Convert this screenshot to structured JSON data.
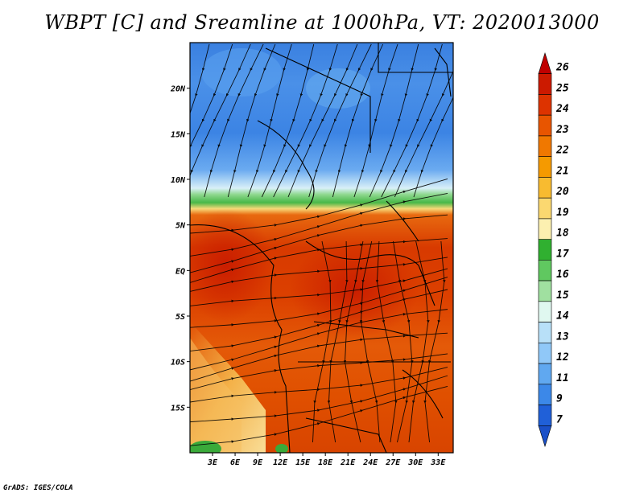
{
  "title": "WBPT [C] and Sreamline at 1000hPa, VT: 2020013000",
  "credit": "GrADS: IGES/COLA",
  "map": {
    "lat_range": [
      -20,
      25
    ],
    "lon_range": [
      0,
      35
    ],
    "lat_ticks": [
      {
        "value": 20,
        "label": "20N"
      },
      {
        "value": 15,
        "label": "15N"
      },
      {
        "value": 10,
        "label": "10N"
      },
      {
        "value": 5,
        "label": "5N"
      },
      {
        "value": 0,
        "label": "EQ"
      },
      {
        "value": -5,
        "label": "5S"
      },
      {
        "value": -10,
        "label": "10S"
      },
      {
        "value": -15,
        "label": "15S"
      }
    ],
    "lon_ticks": [
      {
        "value": 3,
        "label": "3E"
      },
      {
        "value": 6,
        "label": "6E"
      },
      {
        "value": 9,
        "label": "9E"
      },
      {
        "value": 12,
        "label": "12E"
      },
      {
        "value": 15,
        "label": "15E"
      },
      {
        "value": 18,
        "label": "18E"
      },
      {
        "value": 21,
        "label": "21E"
      },
      {
        "value": 24,
        "label": "24E"
      },
      {
        "value": 27,
        "label": "27E"
      },
      {
        "value": 30,
        "label": "30E"
      },
      {
        "value": 33,
        "label": "33E"
      }
    ]
  },
  "colorbar": {
    "labels": [
      "26",
      "25",
      "24",
      "23",
      "22",
      "21",
      "20",
      "19",
      "18",
      "17",
      "16",
      "15",
      "14",
      "13",
      "12",
      "11",
      "9",
      "7"
    ],
    "colors": [
      "#c00000",
      "#cc1a00",
      "#dd3300",
      "#e85500",
      "#f07800",
      "#f59a00",
      "#f8bb30",
      "#fbd870",
      "#fcf0b0",
      "#30b030",
      "#60c860",
      "#a0e0a0",
      "#e0f8f0",
      "#b8e0f8",
      "#90c8f8",
      "#60a8f0",
      "#3c88e8",
      "#2060d8",
      "#1a50c8"
    ]
  }
}
